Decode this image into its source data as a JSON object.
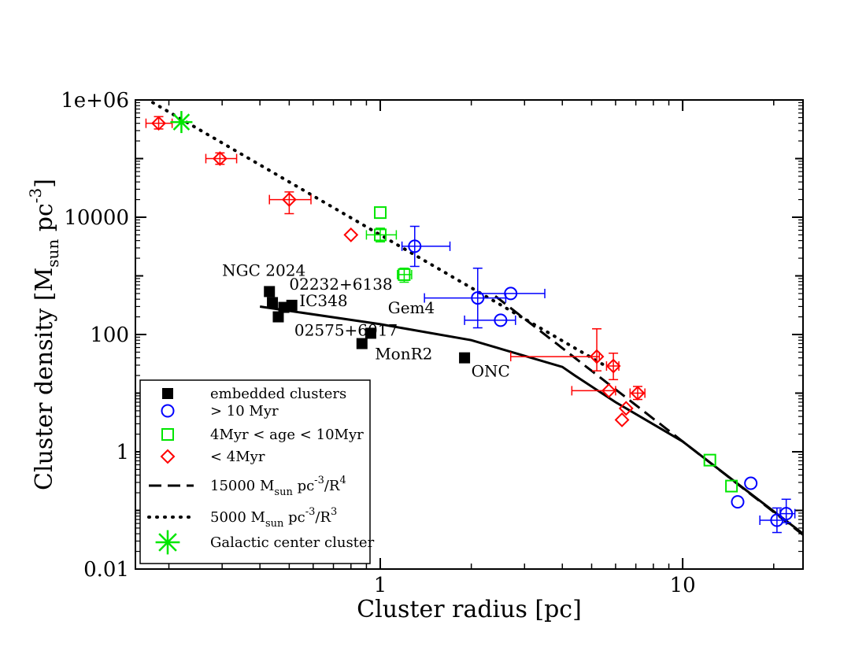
{
  "chart_data": {
    "type": "scatter",
    "xlabel": "Cluster radius [pc]",
    "ylabel": {
      "main": "Cluster density [M",
      "sub": "sun",
      "mid": " pc",
      "sup": "-3",
      "end": "]"
    },
    "xscale": "log",
    "yscale": "log",
    "xlim": [
      0.155,
      25
    ],
    "ylim": [
      0.01,
      1000000
    ],
    "x_ticks": [
      {
        "v": 1,
        "label": "1"
      },
      {
        "v": 10,
        "label": "10"
      }
    ],
    "y_ticks": [
      {
        "v": 0.01,
        "label": "0.01"
      },
      {
        "v": 1,
        "label": "1"
      },
      {
        "v": 100,
        "label": "100"
      },
      {
        "v": 10000,
        "label": "10000"
      },
      {
        "v": 1000000,
        "label": "1e+06"
      }
    ],
    "grid": false,
    "legend_position": "bottom-left",
    "series": [
      {
        "name": "embedded clusters",
        "marker": "filled-square",
        "color": "#000000",
        "points": [
          {
            "x": 0.43,
            "y": 540
          },
          {
            "x": 0.44,
            "y": 350
          },
          {
            "x": 0.46,
            "y": 200
          },
          {
            "x": 0.48,
            "y": 290
          },
          {
            "x": 0.51,
            "y": 315
          },
          {
            "x": 0.87,
            "y": 70
          },
          {
            "x": 0.93,
            "y": 105
          },
          {
            "x": 1.9,
            "y": 40
          }
        ]
      },
      {
        "name": "> 10 Myr",
        "marker": "open-circle",
        "color": "#0000ff",
        "points": [
          {
            "x": 1.3,
            "y": 3200,
            "xerr": [
              1.18,
              1.7
            ],
            "yerr": [
              1450,
              7000
            ]
          },
          {
            "x": 2.1,
            "y": 420,
            "xerr": [
              1.4,
              2.6
            ],
            "yerr": [
              130,
              1350
            ]
          },
          {
            "x": 2.7,
            "y": 500,
            "xerr": [
              2.1,
              3.5
            ]
          },
          {
            "x": 2.5,
            "y": 175,
            "xerr": [
              1.9,
              2.8
            ]
          },
          {
            "x": 15.2,
            "y": 0.14
          },
          {
            "x": 16.8,
            "y": 0.29
          },
          {
            "x": 20.5,
            "y": 0.068,
            "xerr": [
              18.0,
              22.0
            ],
            "yerr": [
              0.042,
              0.11
            ]
          },
          {
            "x": 22.0,
            "y": 0.088,
            "xerr": [
              21.0,
              23.5
            ],
            "yerr": [
              0.062,
              0.155
            ]
          }
        ]
      },
      {
        "name": "4Myr < age < 10Myr",
        "marker": "open-square",
        "color": "#00e600",
        "points": [
          {
            "x": 1.0,
            "y": 12000
          },
          {
            "x": 1.0,
            "y": 5000,
            "xerr": [
              0.9,
              1.13
            ],
            "yerr": [
              3800,
              6500
            ]
          },
          {
            "x": 1.2,
            "y": 1050,
            "xerr": [
              1.14,
              1.27
            ],
            "yerr": [
              780,
              1350
            ]
          },
          {
            "x": 12.3,
            "y": 0.72
          },
          {
            "x": 14.5,
            "y": 0.26
          }
        ]
      },
      {
        "name": "< 4Myr",
        "marker": "open-diamond",
        "color": "#ff0000",
        "points": [
          {
            "x": 0.185,
            "y": 400000,
            "xerr": [
              0.168,
              0.205
            ],
            "yerr": [
              320000,
              520000
            ]
          },
          {
            "x": 0.295,
            "y": 100000,
            "xerr": [
              0.265,
              0.335
            ],
            "yerr": [
              80000,
              125000
            ]
          },
          {
            "x": 0.5,
            "y": 20000,
            "xerr": [
              0.43,
              0.59
            ],
            "yerr": [
              11500,
              27000
            ]
          },
          {
            "x": 0.8,
            "y": 5000
          },
          {
            "x": 5.2,
            "y": 42,
            "xerr": [
              2.7,
              5.3
            ],
            "yerr": [
              24,
              125
            ]
          },
          {
            "x": 5.9,
            "y": 29,
            "xerr": [
              5.6,
              6.15
            ],
            "yerr": [
              17,
              48
            ]
          },
          {
            "x": 5.7,
            "y": 11,
            "xerr": [
              4.3,
              6.0
            ]
          },
          {
            "x": 6.3,
            "y": 3.5
          },
          {
            "x": 6.5,
            "y": 5.5
          },
          {
            "x": 7.1,
            "y": 10,
            "xerr": [
              6.7,
              7.5
            ],
            "yerr": [
              7.8,
              13
            ]
          }
        ]
      },
      {
        "name": "Galactic center cluster",
        "marker": "asterisk",
        "color": "#00e600",
        "points": [
          {
            "x": 0.22,
            "y": 420000
          }
        ]
      }
    ],
    "lines": [
      {
        "name": "15000 M_sun pc^-3/R^4",
        "style": "dashed",
        "color": "#000000",
        "function": "15000/R^4",
        "x_range": [
          2.4,
          25
        ]
      },
      {
        "name": "5000 M_sun pc^-3/R^3",
        "style": "dotted",
        "color": "#000000",
        "function": "5000/R^3",
        "x_range": [
          0.168,
          5.6
        ]
      },
      {
        "name": "model",
        "style": "solid",
        "color": "#000000",
        "points": [
          [
            0.4,
            300
          ],
          [
            1.0,
            150
          ],
          [
            2.0,
            80
          ],
          [
            4.0,
            28
          ],
          [
            4.4,
            20
          ],
          [
            6.0,
            7
          ],
          [
            10,
            1.5
          ],
          [
            15,
            0.3
          ],
          [
            25,
            0.04
          ]
        ]
      }
    ],
    "legend": [
      {
        "marker": "filled-square",
        "color": "#000000",
        "text": "embedded clusters"
      },
      {
        "marker": "open-circle",
        "color": "#0000ff",
        "text": "> 10 Myr"
      },
      {
        "marker": "open-square",
        "color": "#00e600",
        "text": "4Myr < age < 10Myr"
      },
      {
        "marker": "open-diamond",
        "color": "#ff0000",
        "text": "< 4Myr"
      },
      {
        "marker": "dashed-line",
        "color": "#000000",
        "text": {
          "pre": "15000 M",
          "sub": "sun",
          "mid": " pc",
          "sup": "-3",
          "post": "/R",
          "sup2": "4"
        }
      },
      {
        "marker": "dotted-line",
        "color": "#000000",
        "text": {
          "pre": "5000 M",
          "sub": "sun",
          "mid": " pc",
          "sup": "-3",
          "post": "/R",
          "sup2": "3"
        }
      },
      {
        "marker": "asterisk",
        "color": "#00e600",
        "text": "Galactic center cluster"
      }
    ],
    "annotations": [
      {
        "text": "NGC 2024",
        "x": 0.3,
        "y": 1000
      },
      {
        "text": "02232+6138",
        "x": 0.5,
        "y": 580
      },
      {
        "text": "IC348",
        "x": 0.54,
        "y": 305
      },
      {
        "text": "Gem4",
        "x": 1.06,
        "y": 230
      },
      {
        "text": "02575+6017",
        "x": 0.52,
        "y": 95
      },
      {
        "text": "MonR2",
        "x": 0.96,
        "y": 38
      },
      {
        "text": "ONC",
        "x": 2.0,
        "y": 19
      }
    ]
  }
}
